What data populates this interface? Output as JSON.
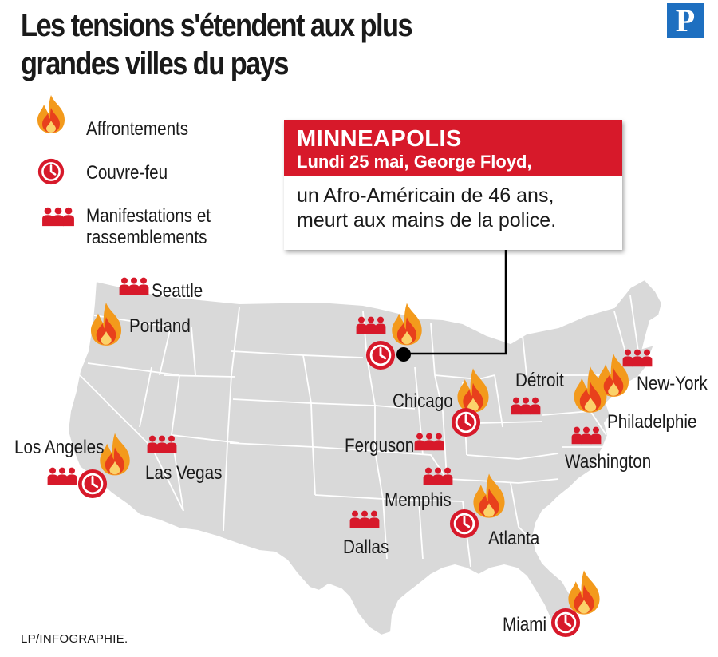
{
  "title": "Les tensions s'étendent aux plus grandes villes du pays",
  "logo": "P",
  "legend": [
    {
      "icon": "fire-icon",
      "label": "Affrontements"
    },
    {
      "icon": "clock-icon",
      "label": "Couvre-feu"
    },
    {
      "icon": "crowd-icon",
      "label": "Manifestations et rassemblements"
    }
  ],
  "callout": {
    "city": "MINNEAPOLIS",
    "date_line": "Lundi 25 mai, George Floyd,",
    "body": "un Afro-Américain de 46 ans, meurt aux mains de la police."
  },
  "cities": [
    {
      "name": "Seattle",
      "events": [
        "crowd"
      ]
    },
    {
      "name": "Portland",
      "events": [
        "fire"
      ]
    },
    {
      "name": "Los Angeles",
      "events": [
        "fire",
        "clock",
        "crowd"
      ]
    },
    {
      "name": "Las Vegas",
      "events": [
        "crowd"
      ]
    },
    {
      "name": "Dallas",
      "events": [
        "crowd"
      ]
    },
    {
      "name": "Memphis",
      "events": [
        "crowd"
      ]
    },
    {
      "name": "Ferguson",
      "events": [
        "crowd"
      ]
    },
    {
      "name": "Chicago",
      "events": [
        "fire",
        "clock"
      ]
    },
    {
      "name": "Détroit",
      "events": [
        "crowd"
      ]
    },
    {
      "name": "Atlanta",
      "events": [
        "fire",
        "clock"
      ]
    },
    {
      "name": "Miami",
      "events": [
        "fire",
        "clock"
      ]
    },
    {
      "name": "Washington",
      "events": [
        "crowd"
      ]
    },
    {
      "name": "Philadelphie",
      "events": [
        "fire"
      ]
    },
    {
      "name": "New-York",
      "events": [
        "crowd"
      ]
    },
    {
      "name": "Minneapolis",
      "events": [
        "crowd",
        "fire",
        "clock"
      ]
    }
  ],
  "credit": "LP/INFOGRAPHIE.",
  "colors": {
    "accent": "#d7192a",
    "map_fill": "#d9d9d9",
    "border": "#ffffff",
    "logo": "#1e6fc0",
    "flame_outer": "#f39a1c",
    "flame_inner": "#e8401c"
  }
}
